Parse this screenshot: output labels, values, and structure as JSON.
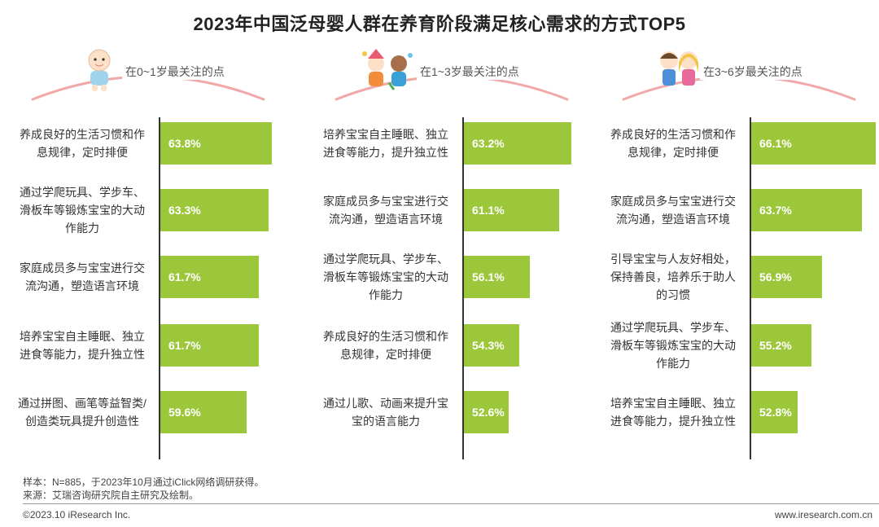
{
  "title": "2023年中国泛母婴人群在养育阶段满足核心需求的方式TOP5",
  "colors": {
    "bar": "#9dc73b",
    "arc": "#f0a8a8"
  },
  "panels": [
    {
      "heading": "在0~1岁最关注的点",
      "icon": "baby-icon",
      "rows": [
        {
          "label": "养成良好的生活习惯和作息规律，定时排便",
          "value_label": "63.8%"
        },
        {
          "label": "通过学爬玩具、学步车、滑板车等锻炼宝宝的大动作能力",
          "value_label": "63.3%"
        },
        {
          "label": "家庭成员多与宝宝进行交流沟通，塑造语言环境",
          "value_label": "61.7%"
        },
        {
          "label": "培养宝宝自主睡眠、独立进食等能力，提升独立性",
          "value_label": "61.7%"
        },
        {
          "label": "通过拼图、画笔等益智类/创造类玩具提升创造性",
          "value_label": "59.6%"
        }
      ]
    },
    {
      "heading": "在1~3岁最关注的点",
      "icon": "toddlers-playing-icon",
      "rows": [
        {
          "label": "培养宝宝自主睡眠、独立进食等能力，提升独立性",
          "value_label": "63.2%"
        },
        {
          "label": "家庭成员多与宝宝进行交流沟通，塑造语言环境",
          "value_label": "61.1%"
        },
        {
          "label": "通过学爬玩具、学步车、滑板车等锻炼宝宝的大动作能力",
          "value_label": "56.1%"
        },
        {
          "label": "养成良好的生活习惯和作息规律，定时排便",
          "value_label": "54.3%"
        },
        {
          "label": "通过儿歌、动画来提升宝宝的语言能力",
          "value_label": "52.6%"
        }
      ]
    },
    {
      "heading": "在3~6岁最关注的点",
      "icon": "children-icon",
      "rows": [
        {
          "label": "养成良好的生活习惯和作息规律，定时排便",
          "value_label": "66.1%"
        },
        {
          "label": "家庭成员多与宝宝进行交流沟通，塑造语言环境",
          "value_label": "63.7%"
        },
        {
          "label": "引导宝宝与人友好相处，保持善良，培养乐于助人的习惯",
          "value_label": "56.9%"
        },
        {
          "label": "通过学爬玩具、学步车、滑板车等锻炼宝宝的大动作能力",
          "value_label": "55.2%"
        },
        {
          "label": "培养宝宝自主睡眠、独立进食等能力，提升独立性",
          "value_label": "52.8%"
        }
      ]
    }
  ],
  "chart_data": [
    {
      "type": "bar",
      "title": "在0~1岁最关注的点",
      "categories": [
        "养成良好的生活习惯和作息规律，定时排便",
        "通过学爬玩具、学步车、滑板车等锻炼宝宝的大动作能力",
        "家庭成员多与宝宝进行交流沟通，塑造语言环境",
        "培养宝宝自主睡眠、独立进食等能力，提升独立性",
        "通过拼图、画笔等益智类/创造类玩具提升创造性"
      ],
      "values": [
        63.8,
        63.3,
        61.7,
        61.7,
        59.6
      ],
      "xlim": [
        45,
        67
      ]
    },
    {
      "type": "bar",
      "title": "在1~3岁最关注的点",
      "categories": [
        "培养宝宝自主睡眠、独立进食等能力，提升独立性",
        "家庭成员多与宝宝进行交流沟通，塑造语言环境",
        "通过学爬玩具、学步车、滑板车等锻炼宝宝的大动作能力",
        "养成良好的生活习惯和作息规律，定时排便",
        "通过儿歌、动画来提升宝宝的语言能力"
      ],
      "values": [
        63.2,
        61.1,
        56.1,
        54.3,
        52.6
      ],
      "xlim": [
        45,
        67
      ]
    },
    {
      "type": "bar",
      "title": "在3~6岁最关注的点",
      "categories": [
        "养成良好的生活习惯和作息规律，定时排便",
        "家庭成员多与宝宝进行交流沟通，塑造语言环境",
        "引导宝宝与人友好相处，保持善良，培养乐于助人的习惯",
        "通过学爬玩具、学步车、滑板车等锻炼宝宝的大动作能力",
        "培养宝宝自主睡眠、独立进食等能力，提升独立性"
      ],
      "values": [
        66.1,
        63.7,
        56.9,
        55.2,
        52.8
      ],
      "xlim": [
        45,
        67
      ]
    }
  ],
  "notes": {
    "sample": "样本：N=885，于2023年10月通过iClick网络调研获得。",
    "source": "来源：艾瑞咨询研究院自主研究及绘制。"
  },
  "footer": {
    "copyright": "©2023.10 iResearch Inc.",
    "website": "www.iresearch.com.cn"
  }
}
